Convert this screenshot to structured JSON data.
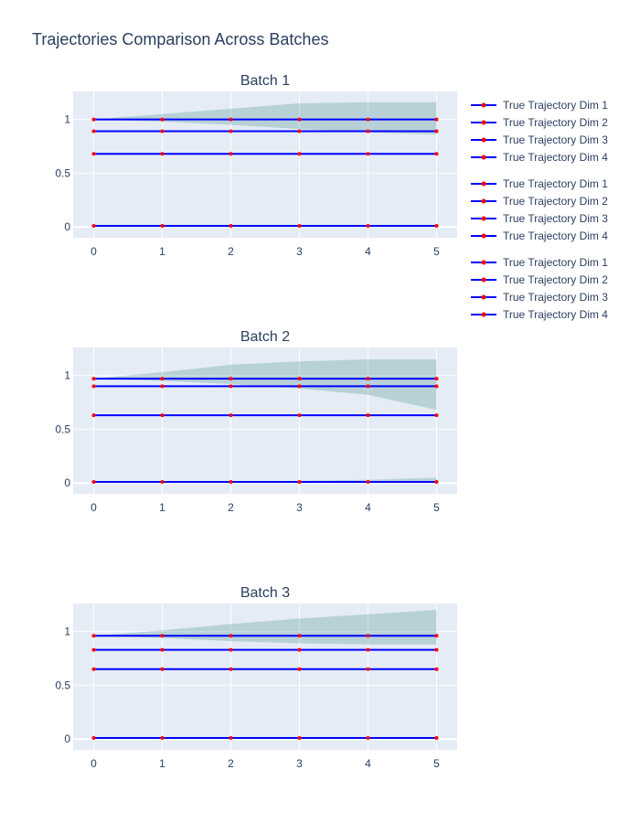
{
  "title": "Trajectories Comparison Across Batches",
  "colors": {
    "plot_bg": "#e5ecf6",
    "grid": "#ffffff",
    "line": "#0000ff",
    "marker": "#ff0000",
    "band": "rgba(47,128,124,0.25)"
  },
  "legend_groups": [
    [
      "True Trajectory Dim 1",
      "True Trajectory Dim 2",
      "True Trajectory Dim 3",
      "True Trajectory Dim 4"
    ],
    [
      "True Trajectory Dim 1",
      "True Trajectory Dim 2",
      "True Trajectory Dim 3",
      "True Trajectory Dim 4"
    ],
    [
      "True Trajectory Dim 1",
      "True Trajectory Dim 2",
      "True Trajectory Dim 3",
      "True Trajectory Dim 4"
    ]
  ],
  "chart_data": [
    {
      "type": "line",
      "title": "Batch 1",
      "x": [
        0,
        1,
        2,
        3,
        4,
        5
      ],
      "xlim": [
        -0.3,
        5.3
      ],
      "ylim": [
        -0.1,
        1.26
      ],
      "x_ticks": [
        "0",
        "1",
        "2",
        "3",
        "4",
        "5"
      ],
      "y_ticks": [
        {
          "v": 0,
          "label": "0"
        },
        {
          "v": 0.5,
          "label": "0.5"
        },
        {
          "v": 1,
          "label": "1"
        }
      ],
      "series": [
        {
          "name": "True Trajectory Dim 1",
          "values": [
            1.0,
            1.0,
            1.0,
            1.0,
            1.0,
            1.0
          ]
        },
        {
          "name": "True Trajectory Dim 2",
          "values": [
            0.89,
            0.89,
            0.89,
            0.89,
            0.89,
            0.89
          ]
        },
        {
          "name": "True Trajectory Dim 3",
          "values": [
            0.68,
            0.68,
            0.68,
            0.68,
            0.68,
            0.68
          ]
        },
        {
          "name": "True Trajectory Dim 4",
          "values": [
            0.01,
            0.01,
            0.01,
            0.01,
            0.01,
            0.01
          ]
        }
      ],
      "bands": [
        {
          "upper": [
            1.0,
            1.05,
            1.1,
            1.15,
            1.16,
            1.16
          ],
          "lower": [
            1.0,
            0.98,
            0.95,
            0.91,
            0.88,
            0.86
          ]
        }
      ]
    },
    {
      "type": "line",
      "title": "Batch 2",
      "x": [
        0,
        1,
        2,
        3,
        4,
        5
      ],
      "xlim": [
        -0.3,
        5.3
      ],
      "ylim": [
        -0.1,
        1.26
      ],
      "x_ticks": [
        "0",
        "1",
        "2",
        "3",
        "4",
        "5"
      ],
      "y_ticks": [
        {
          "v": 0,
          "label": "0"
        },
        {
          "v": 0.5,
          "label": "0.5"
        },
        {
          "v": 1,
          "label": "1"
        }
      ],
      "series": [
        {
          "name": "True Trajectory Dim 1",
          "values": [
            0.97,
            0.97,
            0.97,
            0.97,
            0.97,
            0.97
          ]
        },
        {
          "name": "True Trajectory Dim 2",
          "values": [
            0.9,
            0.9,
            0.9,
            0.9,
            0.9,
            0.9
          ]
        },
        {
          "name": "True Trajectory Dim 3",
          "values": [
            0.63,
            0.63,
            0.63,
            0.63,
            0.63,
            0.63
          ]
        },
        {
          "name": "True Trajectory Dim 4",
          "values": [
            0.01,
            0.01,
            0.01,
            0.01,
            0.01,
            0.01
          ]
        }
      ],
      "bands": [
        {
          "upper": [
            0.97,
            1.03,
            1.1,
            1.13,
            1.15,
            1.15
          ],
          "lower": [
            0.97,
            0.95,
            0.92,
            0.88,
            0.82,
            0.68
          ]
        },
        {
          "upper": [
            0.01,
            0.01,
            0.01,
            0.02,
            0.03,
            0.05
          ],
          "lower": [
            0.01,
            0.01,
            0.01,
            0.0,
            0.0,
            0.0
          ]
        }
      ]
    },
    {
      "type": "line",
      "title": "Batch 3",
      "x": [
        0,
        1,
        2,
        3,
        4,
        5
      ],
      "xlim": [
        -0.3,
        5.3
      ],
      "ylim": [
        -0.1,
        1.26
      ],
      "x_ticks": [
        "0",
        "1",
        "2",
        "3",
        "4",
        "5"
      ],
      "y_ticks": [
        {
          "v": 0,
          "label": "0"
        },
        {
          "v": 0.5,
          "label": "0.5"
        },
        {
          "v": 1,
          "label": "1"
        }
      ],
      "series": [
        {
          "name": "True Trajectory Dim 1",
          "values": [
            0.96,
            0.96,
            0.96,
            0.96,
            0.96,
            0.96
          ]
        },
        {
          "name": "True Trajectory Dim 2",
          "values": [
            0.83,
            0.83,
            0.83,
            0.83,
            0.83,
            0.83
          ]
        },
        {
          "name": "True Trajectory Dim 3",
          "values": [
            0.65,
            0.65,
            0.65,
            0.65,
            0.65,
            0.65
          ]
        },
        {
          "name": "True Trajectory Dim 4",
          "values": [
            0.01,
            0.01,
            0.01,
            0.01,
            0.01,
            0.01
          ]
        }
      ],
      "bands": [
        {
          "upper": [
            0.96,
            1.01,
            1.07,
            1.12,
            1.16,
            1.2
          ],
          "lower": [
            0.96,
            0.94,
            0.91,
            0.89,
            0.88,
            0.88
          ]
        }
      ]
    }
  ]
}
